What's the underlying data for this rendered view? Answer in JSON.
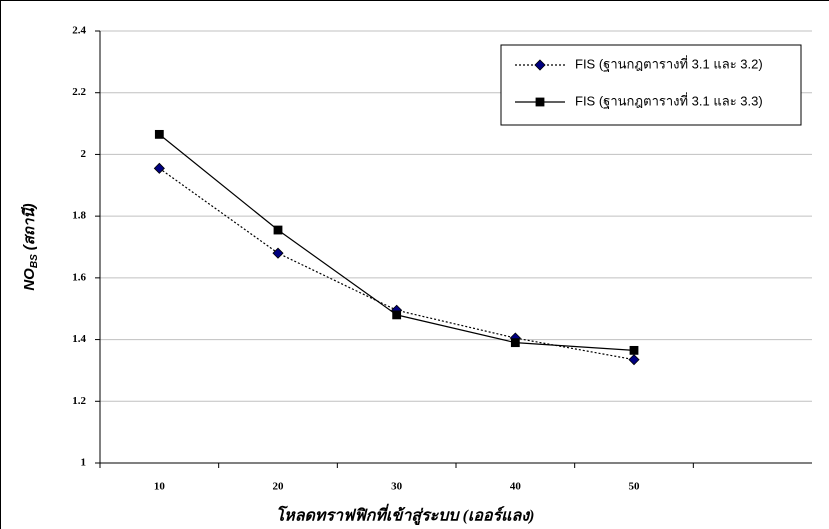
{
  "chart_data": {
    "type": "line",
    "ylabel": "NO",
    "ylabel_sub": "BS",
    "ylabel_unit": "(สถานี)",
    "xlabel": "โหลดทราฟฟิกที่เข้าสู่ระบบ (เออร์แลง)",
    "categories": [
      "10",
      "20",
      "30",
      "40",
      "50",
      null
    ],
    "series": [
      {
        "name": "FIS (ฐานกฎตารางที่ 3.1 และ 3.2)",
        "color": "#000080",
        "marker": "diamond",
        "dash": "dotted",
        "values": [
          1.955,
          1.68,
          1.495,
          1.405,
          1.335,
          null
        ]
      },
      {
        "name": "FIS (ฐานกฎตารางที่ 3.1 และ 3.3)",
        "color": "#000000",
        "marker": "square",
        "dash": "solid",
        "values": [
          2.065,
          1.755,
          1.48,
          1.39,
          1.365,
          null
        ]
      }
    ],
    "ylim": [
      1,
      2.4
    ],
    "yticks": [
      1,
      1.2,
      1.4,
      1.6,
      1.8,
      2,
      2.2,
      2.4
    ],
    "grid": true,
    "legend": "top-right"
  }
}
